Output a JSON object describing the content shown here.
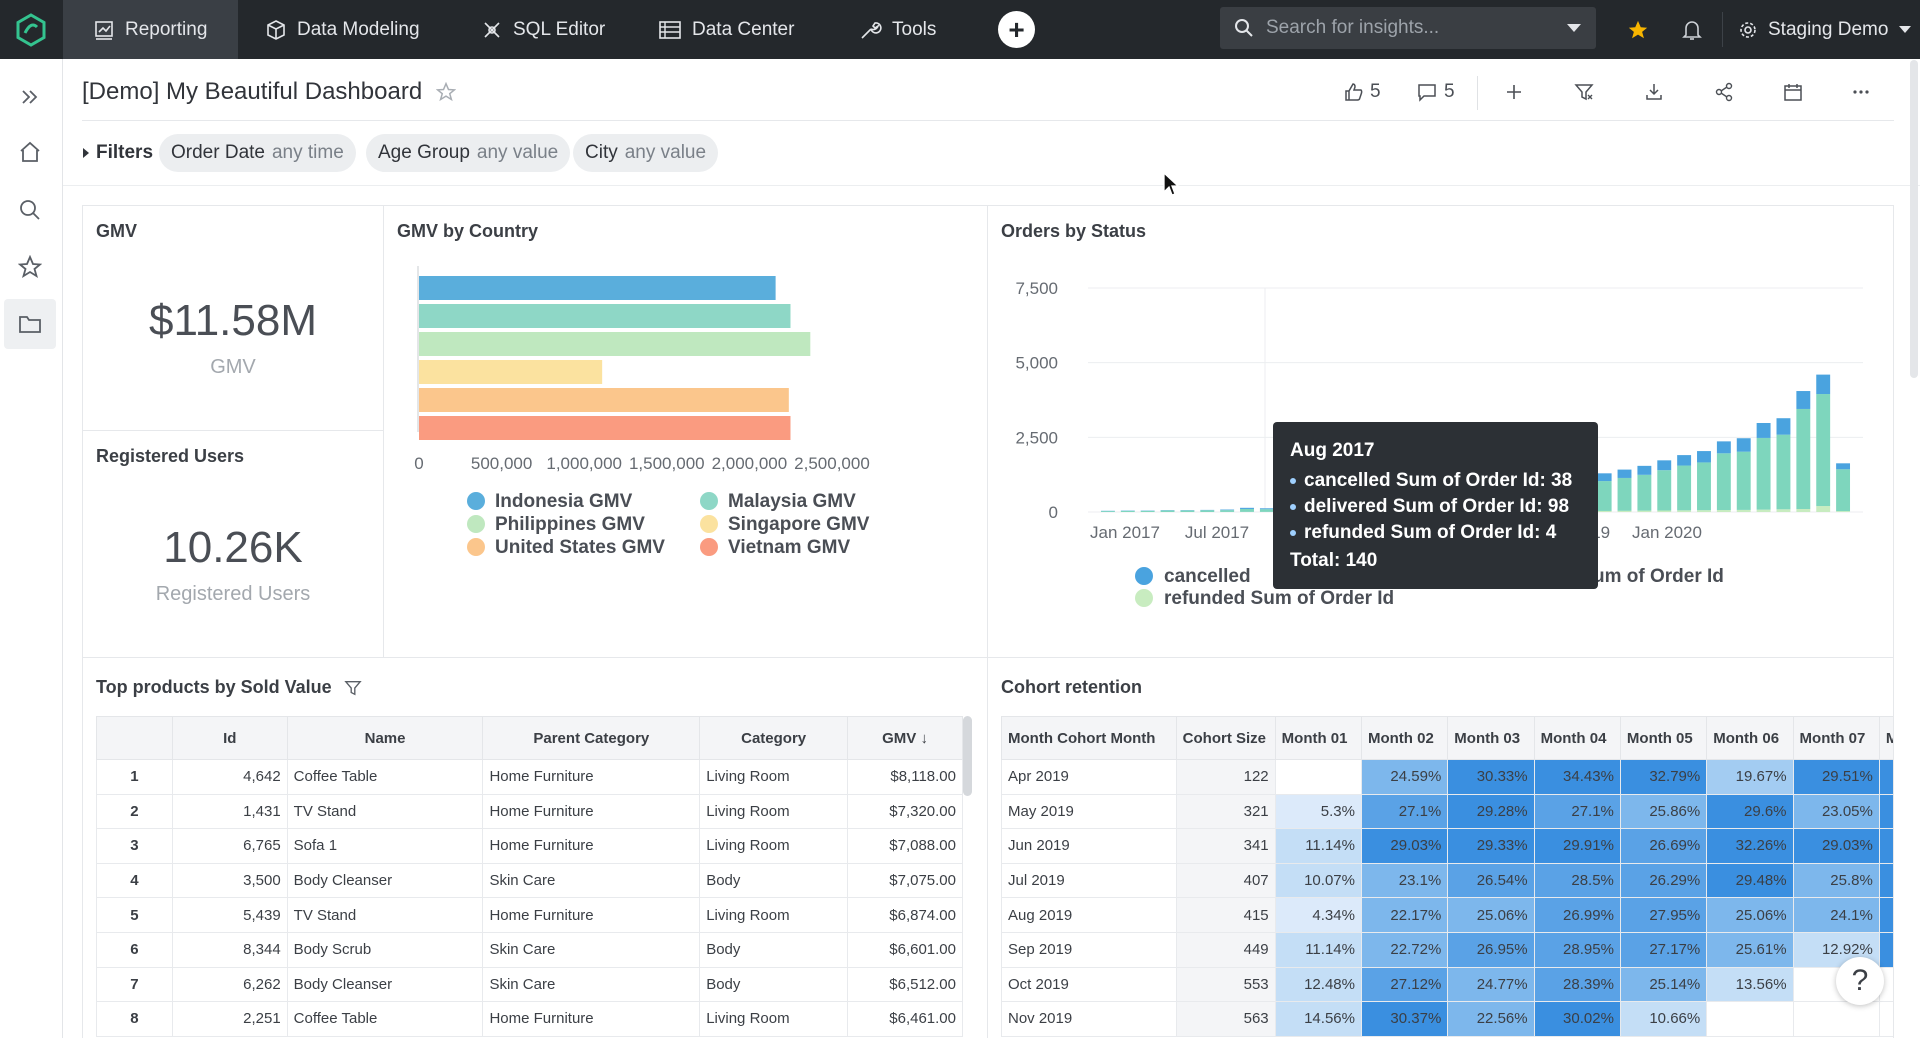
{
  "nav": {
    "items": [
      {
        "label": "Reporting"
      },
      {
        "label": "Data Modeling"
      },
      {
        "label": "SQL Editor"
      },
      {
        "label": "Data Center"
      },
      {
        "label": "Tools"
      }
    ],
    "search_placeholder": "Search for insights...",
    "workspace": "Staging Demo"
  },
  "header": {
    "title": "[Demo] My Beautiful Dashboard",
    "likes": "5",
    "comments": "5"
  },
  "filters": {
    "label": "Filters",
    "chips": [
      {
        "name": "Order Date",
        "value": "any time"
      },
      {
        "name": "Age Group",
        "value": "any value"
      },
      {
        "name": "City",
        "value": "any value"
      }
    ]
  },
  "kpis": {
    "gmv": {
      "title": "GMV",
      "value": "$11.58M",
      "label": "GMV"
    },
    "users": {
      "title": "Registered Users",
      "value": "10.26K",
      "label": "Registered Users"
    }
  },
  "chart_data": [
    {
      "type": "bar",
      "orientation": "horizontal",
      "title": "GMV by Country",
      "categories": [
        "Indonesia GMV",
        "Malaysia GMV",
        "Philippines GMV",
        "Singapore GMV",
        "United States GMV",
        "Vietnam GMV"
      ],
      "values": [
        2080000,
        2170000,
        2290000,
        1030000,
        2160000,
        2170000
      ],
      "colors": [
        "#5aaedc",
        "#8ed7c6",
        "#bfe8bf",
        "#fbe29f",
        "#fbc68c",
        "#fa9b80"
      ],
      "xlim": [
        0,
        2500000
      ],
      "xticks": [
        "0",
        "500,000",
        "1,000,000",
        "1,500,000",
        "2,000,000",
        "2,500,000"
      ],
      "legend": [
        {
          "label": "Indonesia GMV",
          "color": "#5aaedc"
        },
        {
          "label": "Malaysia GMV",
          "color": "#8ed7c6"
        },
        {
          "label": "Philippines GMV",
          "color": "#bfe8bf"
        },
        {
          "label": "Singapore GMV",
          "color": "#fbe29f"
        },
        {
          "label": "United States GMV",
          "color": "#fbc68c"
        },
        {
          "label": "Vietnam GMV",
          "color": "#fa9b80"
        }
      ]
    },
    {
      "type": "bar",
      "stacked": true,
      "title": "Orders by Status",
      "ylim": [
        0,
        7500
      ],
      "yticks": [
        "7,500",
        "5,000",
        "2,500",
        "0"
      ],
      "xticks": [
        "Jan 2017",
        "Jul 2017",
        "Jan 2018",
        "Jul 2018",
        "Jan 2019",
        "Jul 2019",
        "Jan 2020"
      ],
      "x": [
        "Jan 2017",
        "Feb 2017",
        "Mar 2017",
        "Apr 2017",
        "May 2017",
        "Jun 2017",
        "Jul 2017",
        "Aug 2017",
        "Sep 2017",
        "Oct 2017",
        "Nov 2017",
        "Dec 2017",
        "Jan 2018",
        "Feb 2018",
        "Mar 2018",
        "Apr 2018",
        "May 2018",
        "Jun 2018",
        "Jul 2018",
        "Aug 2018",
        "Sep 2018",
        "Oct 2018",
        "Nov 2018",
        "Dec 2018",
        "Jan 2019",
        "Feb 2019",
        "Mar 2019",
        "Apr 2019",
        "May 2019",
        "Jun 2019",
        "Jul 2019",
        "Aug 2019",
        "Sep 2019",
        "Oct 2019",
        "Nov 2019",
        "Dec 2019",
        "Jan 2020",
        "Feb 2020"
      ],
      "series": [
        {
          "name": "cancelled Sum of Order Id",
          "color": "#4aa3df",
          "values": [
            10,
            10,
            10,
            10,
            10,
            10,
            20,
            38,
            30,
            30,
            40,
            40,
            50,
            60,
            70,
            80,
            90,
            100,
            110,
            120,
            150,
            180,
            200,
            220,
            240,
            260,
            280,
            300,
            330,
            350,
            380,
            400,
            450,
            500,
            550,
            600,
            650,
            200
          ]
        },
        {
          "name": "delivered Sum of Order Id",
          "color": "#7ed6bd",
          "values": [
            30,
            40,
            40,
            50,
            50,
            60,
            60,
            98,
            90,
            100,
            110,
            120,
            140,
            160,
            180,
            200,
            220,
            250,
            280,
            320,
            400,
            500,
            700,
            800,
            900,
            1000,
            1100,
            1200,
            1350,
            1500,
            1600,
            1900,
            1950,
            2400,
            2500,
            3350,
            3750,
            1400
          ]
        },
        {
          "name": "refunded Sum of Order Id",
          "color": "#c8ecc0",
          "values": [
            0,
            0,
            0,
            0,
            0,
            0,
            2,
            4,
            4,
            4,
            5,
            5,
            6,
            6,
            7,
            8,
            8,
            9,
            10,
            12,
            15,
            18,
            20,
            25,
            30,
            35,
            40,
            45,
            50,
            55,
            60,
            65,
            70,
            80,
            90,
            100,
            200,
            30
          ]
        }
      ],
      "legend_visible": [
        "cancelled",
        "um of Order Id",
        "refunded Sum of Order Id"
      ],
      "tooltip": {
        "title": "Aug 2017",
        "rows": [
          "cancelled Sum of Order Id: 38",
          "delivered Sum of Order Id: 98",
          "refunded Sum of Order Id: 4"
        ],
        "total": "Total: 140"
      }
    }
  ],
  "products": {
    "title": "Top products by Sold Value",
    "columns": [
      "",
      "Id",
      "Name",
      "Parent Category",
      "Category",
      "GMV"
    ],
    "sort_indicator": "↓",
    "rows": [
      [
        "1",
        "4,642",
        "Coffee Table",
        "Home Furniture",
        "Living Room",
        "$8,118.00"
      ],
      [
        "2",
        "1,431",
        "TV Stand",
        "Home Furniture",
        "Living Room",
        "$7,320.00"
      ],
      [
        "3",
        "6,765",
        "Sofa 1",
        "Home Furniture",
        "Living Room",
        "$7,088.00"
      ],
      [
        "4",
        "3,500",
        "Body Cleanser",
        "Skin Care",
        "Body",
        "$7,075.00"
      ],
      [
        "5",
        "5,439",
        "TV Stand",
        "Home Furniture",
        "Living Room",
        "$6,874.00"
      ],
      [
        "6",
        "8,344",
        "Body Scrub",
        "Skin Care",
        "Body",
        "$6,601.00"
      ],
      [
        "7",
        "6,262",
        "Body Cleanser",
        "Skin Care",
        "Body",
        "$6,512.00"
      ],
      [
        "8",
        "2,251",
        "Coffee Table",
        "Home Furniture",
        "Living Room",
        "$6,461.00"
      ]
    ]
  },
  "cohort": {
    "title": "Cohort retention",
    "columns": [
      "Month Cohort Month",
      "Cohort Size",
      "Month 01",
      "Month 02",
      "Month 03",
      "Month 04",
      "Month 05",
      "Month 06",
      "Month 07",
      "M"
    ],
    "rows": [
      [
        "Apr 2019",
        "122",
        "",
        "24.59%",
        "30.33%",
        "34.43%",
        "32.79%",
        "19.67%",
        "29.51%"
      ],
      [
        "May 2019",
        "321",
        "5.3%",
        "27.1%",
        "29.28%",
        "27.1%",
        "25.86%",
        "29.6%",
        "23.05%"
      ],
      [
        "Jun 2019",
        "341",
        "11.14%",
        "29.03%",
        "29.33%",
        "29.91%",
        "26.69%",
        "32.26%",
        "29.03%"
      ],
      [
        "Jul 2019",
        "407",
        "10.07%",
        "23.1%",
        "26.54%",
        "28.5%",
        "26.29%",
        "29.48%",
        "25.8%"
      ],
      [
        "Aug 2019",
        "415",
        "4.34%",
        "22.17%",
        "25.06%",
        "26.99%",
        "27.95%",
        "25.06%",
        "24.1%"
      ],
      [
        "Sep 2019",
        "449",
        "11.14%",
        "22.72%",
        "26.95%",
        "28.95%",
        "27.17%",
        "25.61%",
        "12.92%"
      ],
      [
        "Oct 2019",
        "553",
        "12.48%",
        "27.12%",
        "24.77%",
        "28.39%",
        "25.14%",
        "13.56%",
        ""
      ],
      [
        "Nov 2019",
        "563",
        "14.56%",
        "30.37%",
        "22.56%",
        "30.02%",
        "10.66%",
        "",
        ""
      ]
    ]
  },
  "help_label": "?"
}
